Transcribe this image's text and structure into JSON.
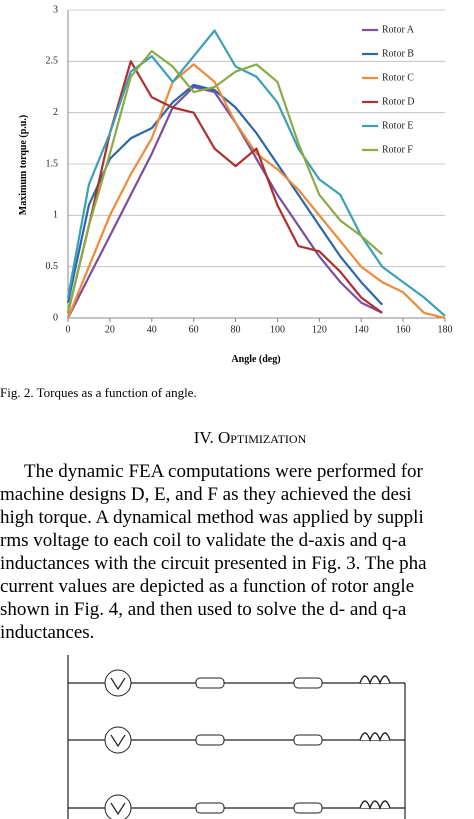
{
  "chart_data": {
    "type": "line",
    "y_label": "Maximum torque (p.u.)",
    "x_label": "Angle (deg)",
    "x": [
      0,
      10,
      20,
      30,
      40,
      50,
      60,
      70,
      80,
      90,
      100,
      110,
      120,
      130,
      140,
      150,
      160,
      170,
      180
    ],
    "xlim": [
      0,
      180
    ],
    "xticks": [
      0,
      20,
      40,
      60,
      80,
      100,
      120,
      140,
      160,
      180
    ],
    "ylim": [
      0,
      3
    ],
    "yticks": [
      0,
      0.5,
      1,
      1.5,
      2,
      2.5,
      3
    ],
    "grid": true,
    "legend": "right",
    "series": [
      {
        "name": "Rotor A",
        "color": "#7a4f9e",
        "values": [
          0,
          0.4,
          0.8,
          1.2,
          1.6,
          2.05,
          2.25,
          2.2,
          1.9,
          1.55,
          1.2,
          0.9,
          0.6,
          0.35,
          0.15,
          0.05,
          null,
          null,
          null
        ]
      },
      {
        "name": "Rotor B",
        "color": "#2e66a8",
        "values": [
          0.15,
          1.1,
          1.55,
          1.75,
          1.85,
          2.1,
          2.27,
          2.22,
          2.05,
          1.8,
          1.5,
          1.2,
          0.9,
          0.6,
          0.35,
          0.13,
          null,
          null,
          null
        ]
      },
      {
        "name": "Rotor C",
        "color": "#ee8a3a",
        "values": [
          0,
          0.5,
          1.0,
          1.4,
          1.75,
          2.3,
          2.47,
          2.3,
          1.9,
          1.6,
          1.45,
          1.25,
          1.0,
          0.75,
          0.5,
          0.35,
          0.25,
          0.05,
          0
        ]
      },
      {
        "name": "Rotor D",
        "color": "#b03030",
        "values": [
          0.05,
          0.9,
          1.8,
          2.5,
          2.15,
          2.05,
          2.0,
          1.65,
          1.48,
          1.65,
          1.1,
          0.7,
          0.65,
          0.45,
          0.2,
          0.05,
          null,
          null,
          null
        ]
      },
      {
        "name": "Rotor E",
        "color": "#3aa0b8",
        "values": [
          0.2,
          1.3,
          1.8,
          2.4,
          2.55,
          2.3,
          2.55,
          2.8,
          2.45,
          2.35,
          2.1,
          1.65,
          1.35,
          1.2,
          0.8,
          0.5,
          0.35,
          0.2,
          0.02
        ]
      },
      {
        "name": "Rotor F",
        "color": "#8aab45",
        "values": [
          0.05,
          0.9,
          1.6,
          2.35,
          2.6,
          2.45,
          2.2,
          2.25,
          2.4,
          2.47,
          2.3,
          1.7,
          1.2,
          0.95,
          0.8,
          0.62,
          null,
          null,
          null
        ]
      }
    ]
  },
  "caption": "Fig. 2.  Torques as a function of angle.",
  "section_heading": "IV. Optimization",
  "paragraph": {
    "lines": [
      "The dynamic FEA computations were performed for",
      "machine designs D, E, and F as they achieved the desi",
      "high torque. A dynamical method was applied by suppli",
      "rms voltage to each coil to validate the d-axis and q-a",
      "inductances with the circuit presented in Fig. 3. The pha",
      "current values are depicted as a function of rotor angle",
      "shown in Fig. 4, and then used to solve the d- and q-a",
      "inductances."
    ]
  }
}
